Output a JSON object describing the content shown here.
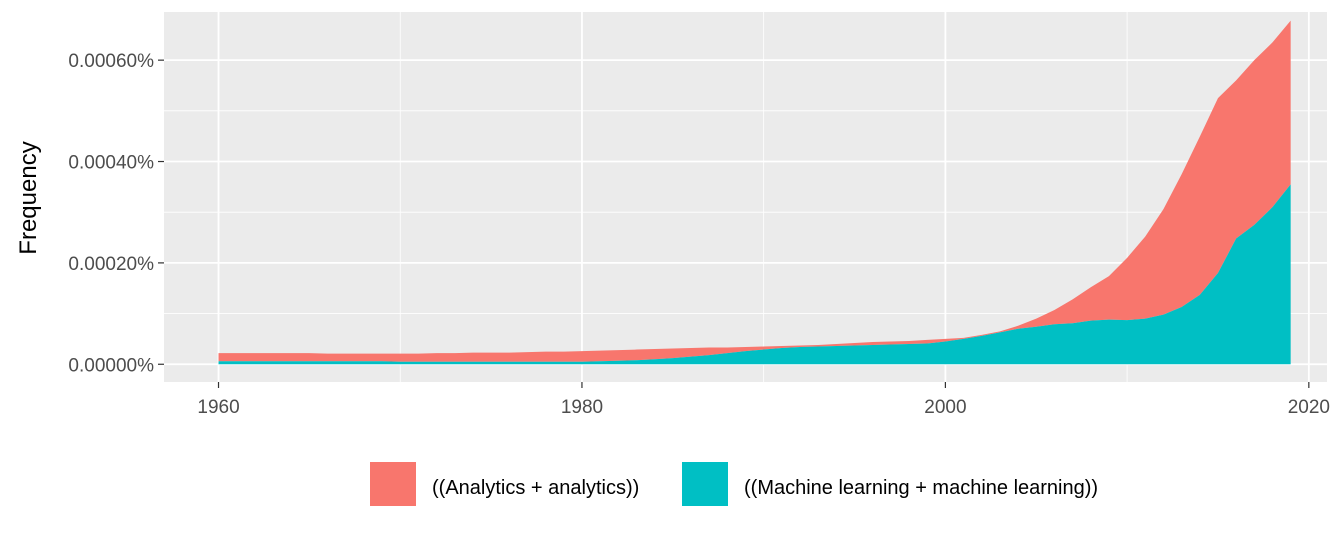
{
  "chart_data": {
    "type": "area",
    "stacked": true,
    "title": "",
    "xlabel": "",
    "ylabel": "Frequency",
    "xlim": [
      1957,
      2021
    ],
    "ylim": [
      -3.5e-05,
      0.000695
    ],
    "x_ticks": [
      1960,
      1980,
      2000,
      2020
    ],
    "x_tick_labels": [
      "1960",
      "1980",
      "2000",
      "2020"
    ],
    "y_ticks": [
      0,
      0.0002,
      0.0004,
      0.0006
    ],
    "y_tick_labels": [
      "0.00000%",
      "0.00020%",
      "0.00040%",
      "0.00060%"
    ],
    "grid": true,
    "legend_position": "bottom",
    "x": [
      1960,
      1961,
      1962,
      1963,
      1964,
      1965,
      1966,
      1967,
      1968,
      1969,
      1970,
      1971,
      1972,
      1973,
      1974,
      1975,
      1976,
      1977,
      1978,
      1979,
      1980,
      1981,
      1982,
      1983,
      1984,
      1985,
      1986,
      1987,
      1988,
      1989,
      1990,
      1991,
      1992,
      1993,
      1994,
      1995,
      1996,
      1997,
      1998,
      1999,
      2000,
      2001,
      2002,
      2003,
      2004,
      2005,
      2006,
      2007,
      2008,
      2009,
      2010,
      2011,
      2012,
      2013,
      2014,
      2015,
      2016,
      2017,
      2018,
      2019
    ],
    "series": [
      {
        "name": "((Machine learning + machine learning))",
        "color": "#00BFC4",
        "values": [
          6e-06,
          6e-06,
          6e-06,
          6e-06,
          6e-06,
          6e-06,
          6e-06,
          6e-06,
          6e-06,
          6e-06,
          5e-06,
          5e-06,
          5e-06,
          5e-06,
          5e-06,
          5e-06,
          5e-06,
          5e-06,
          5e-06,
          5e-06,
          5e-06,
          6e-06,
          7e-06,
          8e-06,
          1e-05,
          1.2e-05,
          1.5e-05,
          1.8e-05,
          2.2e-05,
          2.6e-05,
          2.9e-05,
          3.2e-05,
          3.4e-05,
          3.5e-05,
          3.6e-05,
          3.7e-05,
          3.8e-05,
          3.9e-05,
          4e-05,
          4.1e-05,
          4.5e-05,
          5e-05,
          5.6e-05,
          6.3e-05,
          7e-05,
          7.4e-05,
          7.9e-05,
          8.1e-05,
          8.6e-05,
          8.8e-05,
          8.7e-05,
          9e-05,
          9.8e-05,
          0.000113,
          0.000137,
          0.00018,
          0.000248,
          0.000275,
          0.00031,
          0.000355
        ]
      },
      {
        "name": "((Analytics + analytics))",
        "color": "#F8766D",
        "values": [
          1.6e-05,
          1.6e-05,
          1.6e-05,
          1.6e-05,
          1.6e-05,
          1.6e-05,
          1.5e-05,
          1.5e-05,
          1.5e-05,
          1.5e-05,
          1.6e-05,
          1.6e-05,
          1.7e-05,
          1.7e-05,
          1.8e-05,
          1.8e-05,
          1.8e-05,
          1.9e-05,
          2e-05,
          2e-05,
          2.1e-05,
          2.1e-05,
          2.1e-05,
          2.1e-05,
          2e-05,
          1.9e-05,
          1.7e-05,
          1.5e-05,
          1.1e-05,
          8e-06,
          6e-06,
          4e-06,
          3e-06,
          3e-06,
          4e-06,
          5e-06,
          6e-06,
          6e-06,
          6e-06,
          7e-06,
          5e-06,
          2e-06,
          2e-06,
          2e-06,
          6e-06,
          1.6e-05,
          2.8e-05,
          4.7e-05,
          6.6e-05,
          8.6e-05,
          0.000123,
          0.000162,
          0.000208,
          0.000262,
          0.000312,
          0.000345,
          0.000312,
          0.000325,
          0.000325,
          0.000323
        ]
      }
    ]
  },
  "legend": {
    "items": [
      {
        "label": "((Analytics + analytics))",
        "color": "#F8766D"
      },
      {
        "label": "((Machine learning + machine learning))",
        "color": "#00BFC4"
      }
    ]
  }
}
